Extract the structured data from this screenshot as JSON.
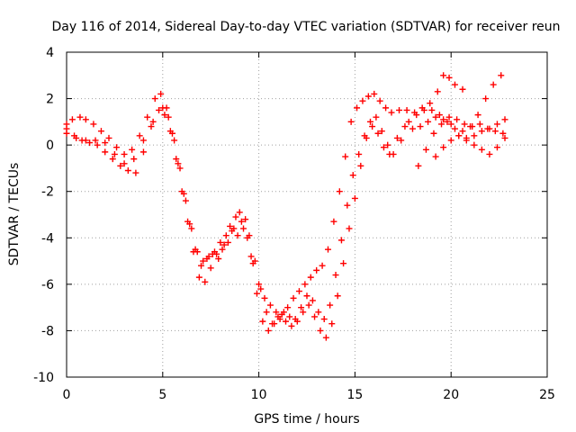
{
  "chart_data": {
    "type": "scatter",
    "title": "Day 116 of 2014, Sidereal Day-to-day VTEC variation (SDTVAR) for receiver reun",
    "xlabel": "GPS time / hours",
    "ylabel": "SDTVAR / TECUs",
    "xlim": [
      0,
      25
    ],
    "ylim": [
      -10,
      4
    ],
    "xticks": [
      "0",
      "5",
      "10",
      "15",
      "20",
      "25"
    ],
    "yticks": [
      "4",
      "2",
      "0",
      "-2",
      "-4",
      "-6",
      "-8",
      "-10"
    ],
    "grid": true,
    "legend": "none",
    "marker": "+",
    "color": "#ff0000",
    "series": [
      {
        "x": [
          0.0,
          0.3,
          0.7,
          1.0,
          1.4,
          1.8,
          2.2,
          2.6,
          3.0,
          3.4,
          3.8,
          4.2,
          4.6,
          4.9,
          5.2,
          5.5,
          5.8,
          6.1,
          6.4,
          6.7,
          7.0,
          7.3,
          7.6,
          7.9,
          8.2,
          8.5,
          8.8,
          9.1,
          9.4,
          9.7,
          10.0,
          10.3,
          10.6,
          10.9,
          11.2,
          11.5,
          11.8,
          12.1,
          12.4,
          12.7,
          13.0,
          13.3,
          13.6,
          13.9,
          14.2,
          14.5,
          14.8,
          15.1,
          15.4,
          15.7,
          16.0,
          16.3,
          16.6,
          16.9,
          17.3,
          17.7,
          18.1,
          18.5,
          18.9,
          19.3,
          19.6,
          19.9,
          20.2,
          20.6
        ],
        "y": [
          0.9,
          1.1,
          1.2,
          1.1,
          0.9,
          0.6,
          0.3,
          -0.1,
          -0.4,
          -0.2,
          0.4,
          1.2,
          2.0,
          2.2,
          1.6,
          0.5,
          -0.8,
          -2.1,
          -3.4,
          -4.5,
          -5.2,
          -4.9,
          -4.7,
          -4.9,
          -4.3,
          -3.5,
          -3.1,
          -3.3,
          -4.0,
          -5.1,
          -6.0,
          -6.6,
          -6.9,
          -7.2,
          -7.3,
          -7.0,
          -6.6,
          -6.3,
          -6.0,
          -5.7,
          -5.4,
          -5.2,
          -4.5,
          -3.3,
          -2.0,
          -0.5,
          1.0,
          1.6,
          1.9,
          2.1,
          2.2,
          1.9,
          1.6,
          1.4,
          1.5,
          1.5,
          1.4,
          1.6,
          1.8,
          2.3,
          3.0,
          2.9,
          2.6,
          2.4
        ]
      },
      {
        "x": [
          0.0,
          0.4,
          0.8,
          1.2,
          1.6,
          2.0,
          2.4,
          2.8,
          3.2,
          3.6,
          4.0,
          4.4,
          4.8,
          5.1,
          5.4,
          5.7,
          6.0,
          6.3,
          6.6,
          6.9,
          7.2,
          7.5,
          7.8,
          8.1,
          8.4,
          8.7,
          9.0,
          9.3,
          9.6,
          9.9,
          10.2,
          10.5,
          10.8,
          11.1,
          11.4,
          11.7,
          12.0,
          12.3,
          12.6,
          12.9,
          13.2,
          13.5,
          13.8,
          14.1,
          14.4,
          14.7,
          15.0,
          15.3,
          15.6,
          15.9,
          16.2,
          16.5,
          16.8,
          17.2,
          17.6,
          18.0,
          18.4,
          18.8,
          19.2,
          19.6,
          20.0,
          20.4,
          20.8,
          21.2,
          21.6,
          22.0,
          22.4,
          22.8
        ],
        "y": [
          0.7,
          0.4,
          0.2,
          0.1,
          0.0,
          -0.3,
          -0.6,
          -0.9,
          -1.1,
          -1.2,
          -0.3,
          0.8,
          1.5,
          1.3,
          0.6,
          -0.6,
          -2.0,
          -3.3,
          -4.6,
          -5.7,
          -5.9,
          -5.3,
          -4.7,
          -4.5,
          -4.2,
          -3.6,
          -2.9,
          -3.2,
          -4.8,
          -6.4,
          -7.6,
          -8.0,
          -7.7,
          -7.5,
          -7.6,
          -7.8,
          -7.6,
          -7.2,
          -6.9,
          -7.4,
          -8.0,
          -8.3,
          -7.7,
          -6.5,
          -5.1,
          -3.6,
          -2.3,
          -0.9,
          0.3,
          0.8,
          0.5,
          -0.1,
          -0.4,
          0.3,
          0.8,
          0.7,
          0.8,
          1.0,
          1.2,
          1.1,
          0.9,
          0.4,
          0.2,
          0.0,
          -0.2,
          -0.4,
          -0.1,
          0.3
        ]
      },
      {
        "x": [
          0.0,
          0.5,
          1.0,
          1.5,
          2.0,
          2.5,
          3.0,
          3.5,
          4.0,
          4.5,
          5.0,
          5.3,
          5.6,
          5.9,
          6.2,
          6.5,
          6.8,
          7.1,
          7.4,
          7.7,
          8.0,
          8.3,
          8.6,
          8.9,
          9.2,
          9.5,
          9.8,
          10.1,
          10.4,
          10.7,
          11.0,
          11.3,
          11.6,
          11.9,
          12.2,
          12.5,
          12.8,
          13.1,
          13.4,
          13.7,
          14.0,
          14.3,
          14.6,
          14.9,
          15.2,
          15.5,
          15.8,
          16.1,
          16.4,
          16.7,
          17.0,
          17.4,
          17.8,
          18.2,
          18.6,
          19.0,
          19.4,
          19.8,
          20.2,
          20.6,
          21.0,
          21.4,
          21.8,
          22.2,
          22.6
        ],
        "y": [
          0.5,
          0.3,
          0.2,
          0.2,
          0.1,
          -0.4,
          -0.8,
          -0.6,
          0.2,
          1.0,
          1.6,
          1.2,
          0.2,
          -1.0,
          -2.4,
          -3.6,
          -4.6,
          -5.0,
          -4.8,
          -4.6,
          -4.2,
          -3.9,
          -3.7,
          -3.9,
          -3.6,
          -3.9,
          -5.0,
          -6.2,
          -7.2,
          -7.7,
          -7.4,
          -7.2,
          -7.4,
          -7.5,
          -7.0,
          -6.5,
          -6.7,
          -7.2,
          -7.5,
          -6.9,
          -5.6,
          -4.1,
          -2.6,
          -1.3,
          -0.4,
          0.4,
          1.0,
          1.2,
          0.6,
          0.0,
          -0.4,
          0.2,
          1.0,
          1.3,
          1.5,
          1.5,
          1.3,
          1.0,
          0.7,
          0.6,
          0.8,
          1.3,
          2.0,
          2.6,
          3.0
        ]
      },
      {
        "x": [
          18.3,
          18.7,
          19.1,
          19.5,
          19.9,
          20.3,
          20.7,
          21.1,
          21.5,
          21.9,
          22.3,
          22.7
        ],
        "y": [
          -0.9,
          -0.2,
          0.5,
          0.9,
          1.2,
          1.1,
          0.9,
          0.8,
          0.9,
          0.7,
          0.6,
          0.5
        ]
      },
      {
        "x": [
          19.2,
          19.6,
          20.0,
          20.4,
          20.8,
          21.2,
          21.6,
          22.0,
          22.4,
          22.8
        ],
        "y": [
          -0.5,
          -0.1,
          0.2,
          0.4,
          0.3,
          0.4,
          0.6,
          0.7,
          0.9,
          1.1
        ]
      }
    ]
  }
}
